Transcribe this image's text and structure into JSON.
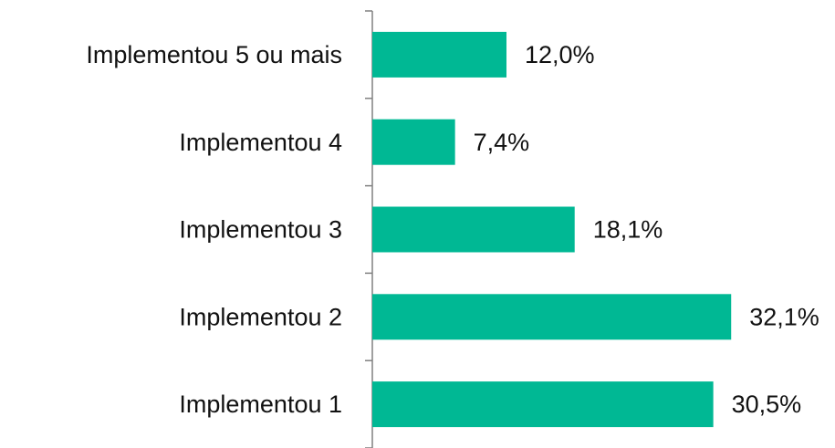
{
  "chart_data": {
    "type": "hbar",
    "categories": [
      "Implementou 5 ou mais",
      "Implementou 4",
      "Implementou 3",
      "Implementou 2",
      "Implementou 1"
    ],
    "values": [
      12.0,
      7.4,
      18.1,
      32.1,
      30.5
    ],
    "value_labels": [
      "12,0%",
      "7,4%",
      "18,1%",
      "32,1%",
      "30,5%"
    ],
    "color": "#00b894"
  }
}
